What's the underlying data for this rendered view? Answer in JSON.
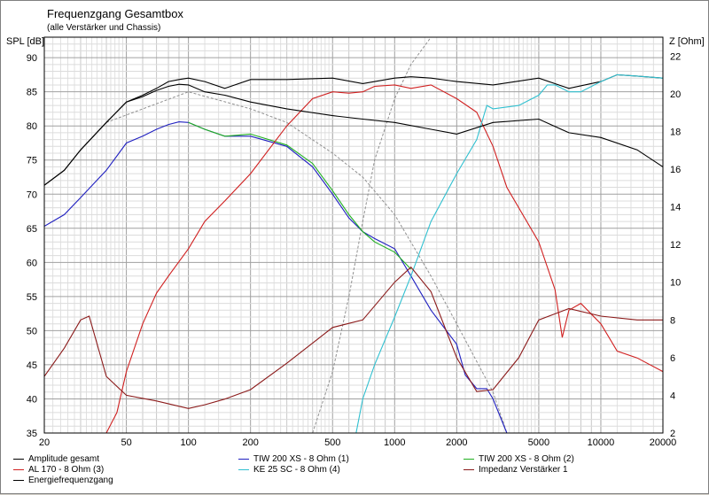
{
  "chart_data": {
    "type": "line",
    "title": "Frequenzgang Gesamtbox",
    "subtitle": "(alle Verstärker und Chassis)",
    "ylabel": "SPL [dB]",
    "y2label": "Z [Ohm]",
    "xscale": "log",
    "xlim": [
      20,
      20000
    ],
    "ylim": [
      35,
      93
    ],
    "y2lim": [
      2,
      23
    ],
    "x_ticks": [
      20,
      50,
      100,
      200,
      500,
      1000,
      2000,
      5000,
      10000,
      20000
    ],
    "x_tick_labels": [
      "20",
      "50",
      "100",
      "200",
      "500",
      "1000",
      "2000",
      "5000",
      "10000",
      "20000"
    ],
    "y_ticks": [
      35,
      40,
      45,
      50,
      55,
      60,
      65,
      70,
      75,
      80,
      85,
      90
    ],
    "y2_ticks": [
      2,
      4,
      6,
      8,
      10,
      12,
      14,
      16,
      18,
      20,
      22
    ],
    "grid": true,
    "legend_position": "bottom",
    "series": [
      {
        "name": "Amplitude gesamt",
        "color": "#000000",
        "axis": "left",
        "x": [
          20,
          25,
          30,
          40,
          50,
          60,
          70,
          80,
          90,
          100,
          120,
          150,
          200,
          300,
          500,
          700,
          1000,
          1200,
          1500,
          2000,
          3000,
          5000,
          7000,
          10000,
          12000,
          15000,
          20000
        ],
        "y": [
          71.3,
          73.5,
          76.5,
          80.5,
          83.5,
          84.5,
          85.5,
          86.5,
          86.8,
          87,
          86.5,
          85.5,
          86.8,
          86.8,
          87,
          86.2,
          87,
          87.2,
          87,
          86.5,
          86,
          87,
          85.5,
          86.5,
          87.5,
          87.3,
          87
        ]
      },
      {
        "name": "TIW 200 XS - 8 Ohm (1)",
        "color": "#2020c0",
        "axis": "left",
        "x": [
          20,
          25,
          30,
          40,
          50,
          60,
          70,
          80,
          90,
          100,
          120,
          150,
          200,
          300,
          400,
          500,
          600,
          700,
          800,
          1000,
          1200,
          1500,
          2000,
          2200,
          2500,
          2800,
          3000,
          3500
        ],
        "y": [
          65.3,
          67,
          69.5,
          73.5,
          77.5,
          78.5,
          79.5,
          80.2,
          80.6,
          80.5,
          79.5,
          78.5,
          78.5,
          77,
          74,
          70,
          66.5,
          64.5,
          63.5,
          62,
          58,
          53,
          48,
          43.5,
          41.5,
          41.5,
          40,
          35
        ]
      },
      {
        "name": "TIW 200 XS - 8 Ohm (2)",
        "color": "#20b020",
        "axis": "left",
        "x": [
          100,
          120,
          150,
          200,
          300,
          400,
          500,
          600,
          700,
          800,
          1000,
          1200
        ],
        "y": [
          80.5,
          79.5,
          78.5,
          78.8,
          77.2,
          74.5,
          70.5,
          67,
          64.5,
          63,
          61.5,
          59
        ]
      },
      {
        "name": "AL 170 - 8 Ohm (3)",
        "color": "#d02020",
        "axis": "left",
        "x": [
          20,
          40,
          45,
          50,
          60,
          70,
          80,
          100,
          120,
          150,
          200,
          300,
          400,
          500,
          600,
          700,
          800,
          1000,
          1200,
          1500,
          2000,
          2500,
          3000,
          3500,
          5000,
          6000,
          6500,
          7000,
          8000,
          10000,
          12000,
          15000,
          20000
        ],
        "y": [
          35,
          35,
          38,
          44,
          51,
          55.5,
          58,
          62,
          66,
          69,
          73,
          80,
          84,
          85,
          84.8,
          85,
          85.8,
          86,
          85.5,
          86,
          84,
          82,
          77,
          71,
          63,
          56,
          49,
          53,
          54,
          51,
          47,
          46,
          44
        ]
      },
      {
        "name": "KE 25 SC - 8 Ohm    (4)",
        "color": "#30c0d0",
        "axis": "left",
        "x": [
          650,
          700,
          800,
          1000,
          1200,
          1500,
          2000,
          2500,
          2800,
          3000,
          4000,
          5000,
          5500,
          6000,
          7000,
          8000,
          10000,
          12000,
          15000,
          20000
        ],
        "y": [
          35,
          40,
          45,
          52,
          58,
          66,
          73,
          78,
          83,
          82.5,
          83,
          84.5,
          86,
          86,
          85,
          85,
          86.5,
          87.5,
          87.3,
          87
        ]
      },
      {
        "name": "Impedanz Verstärker 1",
        "color": "#8b1a1a",
        "axis": "right",
        "x": [
          20,
          25,
          30,
          33,
          40,
          50,
          70,
          100,
          120,
          150,
          200,
          300,
          500,
          700,
          1000,
          1200,
          1500,
          2000,
          2500,
          3000,
          4000,
          5000,
          7000,
          10000,
          15000,
          20000
        ],
        "y": [
          5,
          6.5,
          8,
          8.2,
          5,
          4,
          3.7,
          3.3,
          3.5,
          3.8,
          4.3,
          5.7,
          7.6,
          8,
          10,
          10.8,
          9.5,
          6,
          4.2,
          4.3,
          6,
          8,
          8.6,
          8.2,
          8,
          8
        ]
      },
      {
        "name": "Energiefrequenzgang",
        "color": "#000000",
        "axis": "left",
        "x": [
          20,
          25,
          30,
          40,
          50,
          60,
          70,
          80,
          90,
          100,
          120,
          150,
          200,
          300,
          500,
          700,
          1000,
          1500,
          2000,
          3000,
          5000,
          7000,
          10000,
          15000,
          20000
        ],
        "y": [
          71.3,
          73.5,
          76.5,
          80.5,
          83.5,
          84.3,
          85.2,
          85.8,
          86.1,
          86,
          85,
          84.5,
          83.5,
          82.5,
          81.5,
          81,
          80.5,
          79.5,
          78.8,
          80.5,
          81,
          79,
          78.3,
          76.5,
          74
        ]
      }
    ]
  },
  "legend": [
    {
      "label": "Amplitude gesamt",
      "color": "#000000"
    },
    {
      "label": "AL 170 - 8 Ohm (3)",
      "color": "#d02020"
    },
    {
      "label": "Energiefrequenzgang",
      "color": "#000000"
    },
    {
      "label": "TIW 200 XS - 8 Ohm (1)",
      "color": "#2020c0"
    },
    {
      "label": "KE 25 SC - 8 Ohm    (4)",
      "color": "#30c0d0"
    },
    {
      "label": "TIW 200 XS - 8 Ohm (2)",
      "color": "#20b020"
    },
    {
      "label": "Impedanz Verstärker 1",
      "color": "#8b1a1a"
    }
  ]
}
